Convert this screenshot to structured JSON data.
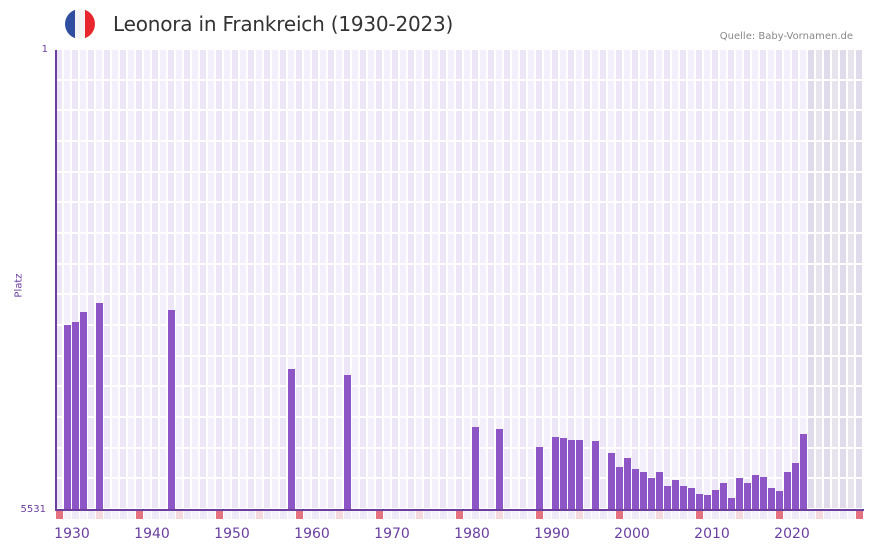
{
  "header": {
    "title": "Leonora in Frankreich (1930-2023)",
    "source": "Quelle: Baby-Vornamen.de",
    "flag": {
      "icon": "france-flag-icon",
      "colors": [
        "#2f4ea0",
        "#f4f4f4",
        "#e8262d"
      ]
    }
  },
  "axes": {
    "ylabel": "Platz",
    "ytick_top": "1",
    "ytick_bottom": "5531",
    "xticks": [
      "1930",
      "1940",
      "1950",
      "1960",
      "1970",
      "1980",
      "1990",
      "2000",
      "2010",
      "2020"
    ]
  },
  "colors": {
    "bar": "#8e55c7",
    "axis": "#6a3fa0",
    "grid_a": "#f3f0fb",
    "grid_b": "#ece6f7",
    "future_a": "#e7e4ee",
    "future_b": "#e0dbeb",
    "marker_decade": "#e5727e",
    "marker_half": "#f6d8df"
  },
  "chart_data": {
    "type": "bar",
    "title": "Leonora in Frankreich (1930-2023)",
    "xlabel": "",
    "ylabel": "Platz",
    "ylim": [
      5531,
      1
    ],
    "y_inverted": true,
    "grid": true,
    "x_range": [
      1929,
      2029
    ],
    "future_shaded_from": 2023,
    "x": [
      1930,
      1931,
      1932,
      1934,
      1943,
      1958,
      1965,
      1981,
      1984,
      1989,
      1991,
      1992,
      1993,
      1994,
      1996,
      1998,
      1999,
      2000,
      2001,
      2002,
      2003,
      2004,
      2005,
      2006,
      2007,
      2008,
      2009,
      2010,
      2011,
      2012,
      2013,
      2014,
      2015,
      2016,
      2017,
      2018,
      2019,
      2020,
      2021,
      2022
    ],
    "values": [
      3307,
      3271,
      3151,
      3043,
      3127,
      3836,
      3908,
      4533,
      4557,
      4773,
      4653,
      4665,
      4689,
      4689,
      4701,
      4845,
      5013,
      4905,
      5037,
      5073,
      5146,
      5073,
      5242,
      5170,
      5242,
      5266,
      5338,
      5350,
      5290,
      5206,
      5386,
      5146,
      5206,
      5110,
      5134,
      5266,
      5302,
      5073,
      4966,
      4617
    ]
  }
}
